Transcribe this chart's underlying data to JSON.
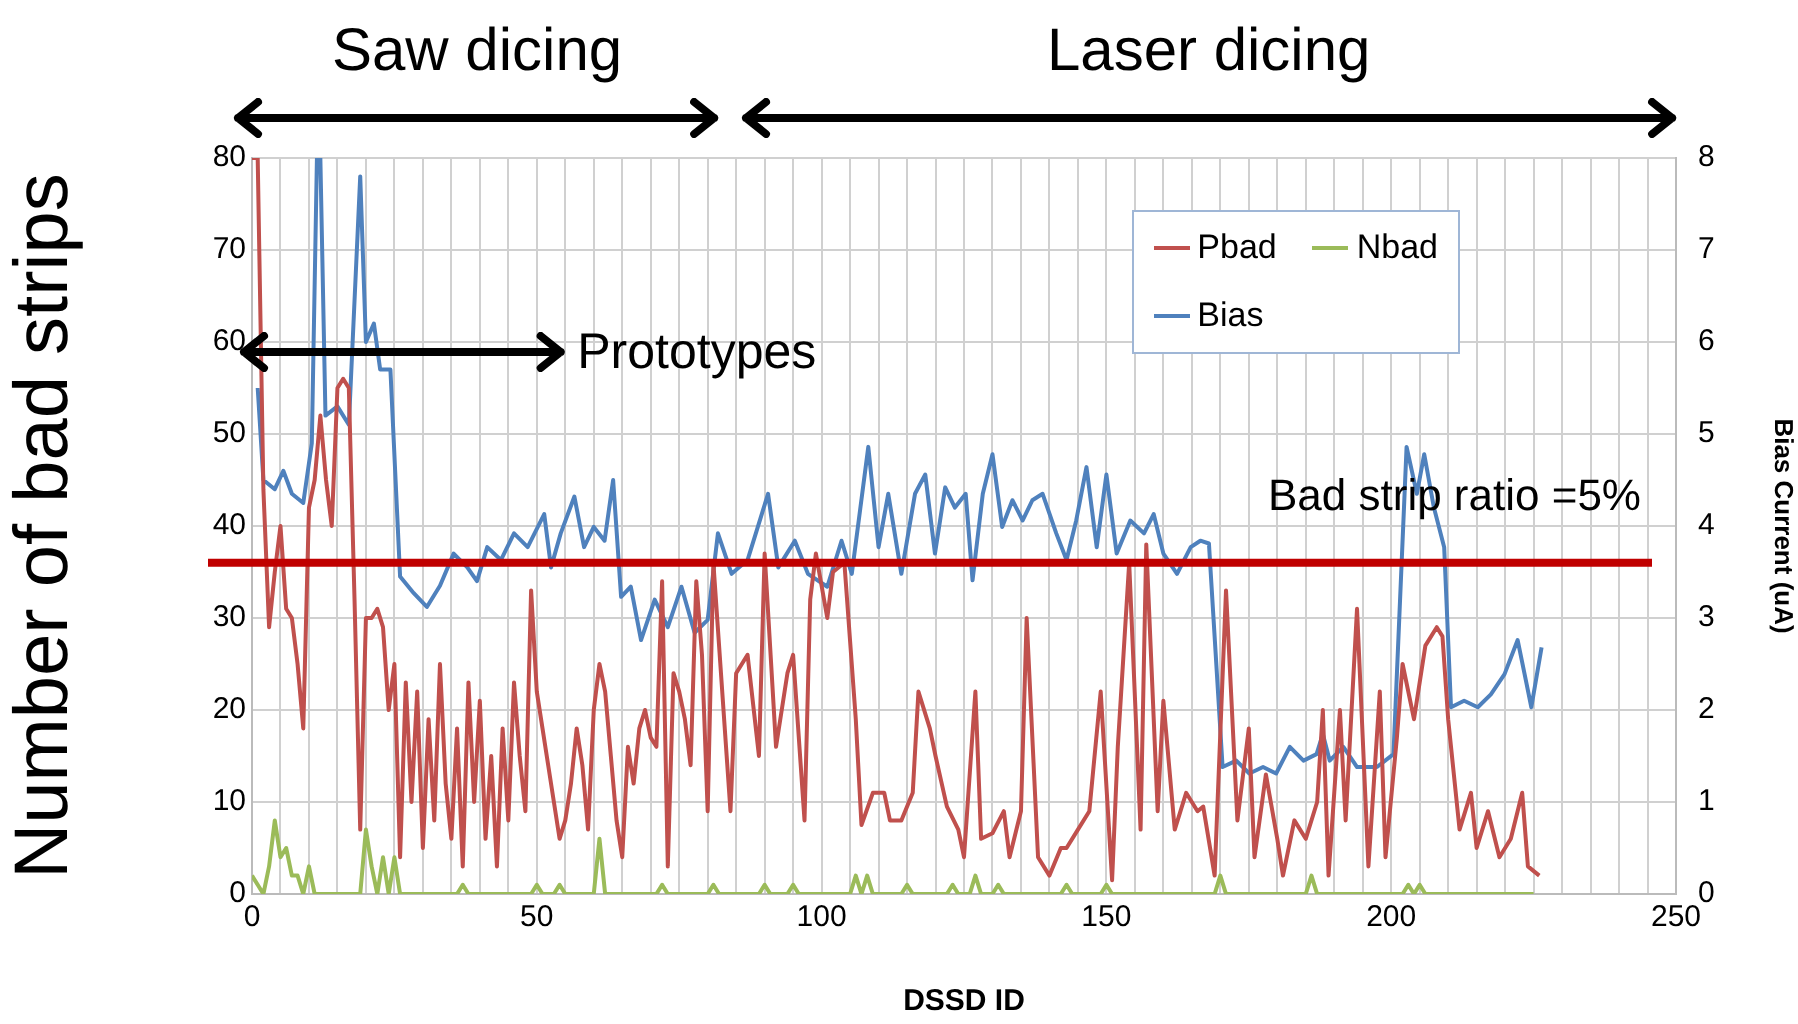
{
  "chart_data": {
    "type": "line",
    "xlabel": "DSSD ID",
    "ylabel": "Number of bad strips",
    "y2label": "Bias Current (uA)",
    "xlim": [
      0,
      250
    ],
    "xticks": [
      0,
      {
        "value": 5,
        "label": null
      },
      {
        "value": 10,
        "label": null
      },
      {
        "value": 15,
        "label": null
      },
      {
        "value": 20,
        "label": null
      },
      {
        "value": 25,
        "label": null
      },
      {
        "value": 30,
        "label": null
      },
      {
        "value": 35,
        "label": null
      },
      {
        "value": 40,
        "label": null
      },
      {
        "value": 45,
        "label": null
      },
      50,
      {
        "value": 55,
        "label": null
      },
      {
        "value": 60,
        "label": null
      },
      {
        "value": 65,
        "label": null
      },
      {
        "value": 70,
        "label": null
      },
      {
        "value": 75,
        "label": null
      },
      {
        "value": 80,
        "label": null
      },
      {
        "value": 85,
        "label": null
      },
      {
        "value": 90,
        "label": null
      },
      {
        "value": 95,
        "label": null
      },
      100,
      {
        "value": 105,
        "label": null
      },
      {
        "value": 110,
        "label": null
      },
      {
        "value": 115,
        "label": null
      },
      {
        "value": 120,
        "label": null
      },
      {
        "value": 125,
        "label": null
      },
      {
        "value": 130,
        "label": null
      },
      {
        "value": 135,
        "label": null
      },
      {
        "value": 140,
        "label": null
      },
      {
        "value": 145,
        "label": null
      },
      150,
      {
        "value": 155,
        "label": null
      },
      {
        "value": 160,
        "label": null
      },
      {
        "value": 165,
        "label": null
      },
      {
        "value": 170,
        "label": null
      },
      {
        "value": 175,
        "label": null
      },
      {
        "value": 180,
        "label": null
      },
      {
        "value": 185,
        "label": null
      },
      {
        "value": 190,
        "label": null
      },
      {
        "value": 195,
        "label": null
      },
      200,
      {
        "value": 205,
        "label": null
      },
      {
        "value": 210,
        "label": null
      },
      {
        "value": 215,
        "label": null
      },
      {
        "value": 220,
        "label": null
      },
      {
        "value": 225,
        "label": null
      },
      {
        "value": 230,
        "label": null
      },
      {
        "value": 235,
        "label": null
      },
      {
        "value": 240,
        "label": null
      },
      {
        "value": 245,
        "label": null
      },
      250
    ],
    "ylim": [
      0,
      80
    ],
    "yticks": [
      0,
      10,
      20,
      30,
      40,
      50,
      60,
      70,
      80
    ],
    "y2lim": [
      0,
      8
    ],
    "y2ticks": [
      0,
      1,
      2,
      3,
      4,
      5,
      6,
      7,
      8
    ],
    "grid": true,
    "legend": "top right",
    "marker": "none",
    "line_style": "solid",
    "series": [
      {
        "name": "Pbad",
        "color": "#c0504d",
        "x": [
          0,
          1,
          2,
          3,
          4,
          5,
          6,
          7,
          8,
          9,
          10,
          11,
          12,
          13,
          14,
          15,
          16,
          17,
          18,
          19,
          20,
          21,
          22,
          23,
          24,
          25,
          26,
          27,
          28,
          29,
          30,
          31,
          32,
          33,
          34,
          35,
          36,
          37,
          38,
          39,
          40,
          41,
          42,
          43,
          44,
          45,
          46,
          47,
          48,
          49,
          50,
          51,
          52,
          53,
          54,
          55,
          56,
          57,
          58,
          59,
          60,
          61,
          62,
          63,
          64,
          65,
          66,
          67,
          68,
          69,
          70,
          71,
          72,
          73,
          74,
          75,
          76,
          77,
          78,
          79,
          80,
          81,
          84,
          85,
          87,
          89,
          90,
          92,
          94,
          95,
          97,
          98,
          99,
          101,
          102,
          104,
          106,
          107,
          109,
          111,
          112,
          114,
          116,
          117,
          119,
          120,
          122,
          124,
          125,
          127,
          128,
          130,
          132,
          133,
          135,
          136,
          138,
          140,
          142,
          143,
          145,
          147,
          149,
          151,
          152,
          154,
          156,
          157,
          159,
          160,
          162,
          164,
          166,
          167,
          169,
          171,
          173,
          175,
          176,
          178,
          180,
          181,
          183,
          185,
          187,
          188,
          189,
          191,
          192,
          194,
          196,
          198,
          199,
          201,
          202,
          204,
          206,
          208,
          209,
          210,
          212,
          214,
          215,
          217,
          219,
          221,
          223,
          224,
          226
        ],
        "values": [
          80,
          80,
          44,
          29,
          35,
          40,
          31,
          30,
          25,
          18,
          42,
          45,
          52,
          45,
          40,
          55,
          56,
          55,
          32,
          7,
          30,
          30,
          31,
          29,
          20,
          25,
          4,
          23,
          10,
          22,
          5,
          19,
          8,
          25,
          12,
          6,
          18,
          3,
          23,
          10,
          21,
          6,
          15,
          3,
          18,
          8,
          23,
          15,
          9,
          33,
          22,
          18,
          14,
          10,
          6,
          8,
          12,
          18,
          14,
          7,
          20,
          25,
          22,
          15,
          8,
          4,
          16,
          12,
          18,
          20,
          17,
          16,
          34,
          3,
          24,
          22,
          19,
          14,
          34,
          26,
          9,
          36,
          9,
          24,
          26,
          15,
          37,
          16,
          24,
          26,
          8,
          32,
          37,
          30,
          35,
          36,
          19,
          7.5,
          11,
          11,
          8,
          8,
          11,
          22,
          18,
          15,
          9.5,
          7,
          4,
          22,
          6,
          6.6,
          9,
          4,
          9,
          30,
          4,
          2,
          5,
          5,
          7,
          9,
          22,
          1.5,
          16,
          36,
          7,
          38,
          9,
          21,
          7,
          11,
          9,
          9.5,
          2,
          33,
          8,
          18,
          4,
          13,
          6,
          2,
          8,
          6,
          10,
          20,
          2,
          20,
          8,
          31,
          3,
          22,
          4,
          17,
          25,
          19,
          27,
          29,
          28,
          19,
          7,
          11,
          5,
          9,
          4,
          6,
          11,
          3,
          2
        ]
      },
      {
        "name": "Nbad",
        "color": "#9bbb59",
        "x": [
          0,
          1,
          2,
          3,
          4,
          5,
          6,
          7,
          8,
          9,
          10,
          11,
          12,
          13,
          19,
          20,
          21,
          22,
          23,
          24,
          25,
          26,
          36,
          37,
          38,
          49,
          50,
          51,
          53,
          54,
          55,
          60,
          61,
          62,
          63,
          71,
          72,
          73,
          80,
          81,
          82,
          89,
          90,
          91,
          94,
          95,
          96,
          105,
          106,
          107,
          108,
          109,
          114,
          115,
          116,
          122,
          123,
          124,
          126,
          127,
          128,
          130,
          131,
          132,
          142,
          143,
          144,
          149,
          150,
          151,
          169,
          170,
          171,
          185,
          186,
          187,
          202,
          203,
          204,
          205,
          206,
          225
        ],
        "values": [
          2,
          1,
          0,
          3,
          8,
          4,
          5,
          2,
          2,
          0,
          3,
          0,
          0,
          0,
          0,
          7,
          3,
          0,
          4,
          0,
          4,
          0,
          0,
          1,
          0,
          0,
          1,
          0,
          0,
          1,
          0,
          0,
          6,
          0,
          0,
          0,
          1,
          0,
          0,
          1,
          0,
          0,
          1,
          0,
          0,
          1,
          0,
          0,
          2,
          0,
          2,
          0,
          0,
          1,
          0,
          0,
          1,
          0,
          0,
          2,
          0,
          0,
          1,
          0,
          0,
          1,
          0,
          0,
          1,
          0,
          0,
          2,
          0,
          0,
          2,
          0,
          0,
          1,
          0,
          1,
          0,
          0
        ]
      },
      {
        "name": "Bias",
        "color": "#4f81bd",
        "axis": "y2",
        "x": [
          1,
          2,
          4,
          5.5,
          7,
          9,
          10.5,
          11.4,
          12,
          12.9,
          15,
          17,
          19,
          20,
          21.4,
          22.5,
          24.3,
          26,
          28.4,
          30.7,
          33,
          35.4,
          37.8,
          39.5,
          41.3,
          43.7,
          46,
          48.4,
          51.3,
          52.5,
          54.2,
          56.6,
          58.3,
          60,
          61.9,
          63.4,
          64.8,
          66.5,
          68.3,
          70.7,
          73,
          75.4,
          77.7,
          80,
          81.8,
          84.2,
          87,
          90.6,
          92.4,
          95.3,
          97.6,
          101,
          103.5,
          105.3,
          108.2,
          110,
          111.7,
          114,
          116.4,
          118.2,
          119.9,
          121.7,
          123.4,
          125.3,
          126.5,
          128.3,
          130,
          131.7,
          133.5,
          135.3,
          137,
          138.8,
          141.2,
          143,
          144.7,
          146.5,
          148.3,
          150,
          151.8,
          154.2,
          156.6,
          158.3,
          160,
          162.4,
          164.8,
          166.5,
          168,
          170.4,
          172.8,
          175.1,
          177.5,
          179.8,
          182.2,
          184.6,
          186.9,
          188,
          189.2,
          191.6,
          194,
          197.5,
          200.4,
          202.7,
          204.5,
          205.8,
          207.5,
          209.3,
          210.5,
          212.8,
          215.2,
          217.5,
          219.9,
          222.2,
          224.6,
          226.4
        ],
        "values": [
          5.5,
          4.5,
          4.4,
          4.6,
          4.35,
          4.25,
          4.9,
          8,
          8,
          5.2,
          5.3,
          5.1,
          7.8,
          6,
          6.2,
          5.7,
          5.7,
          3.45,
          3.27,
          3.12,
          3.35,
          3.7,
          3.55,
          3.4,
          3.77,
          3.63,
          3.92,
          3.77,
          4.13,
          3.55,
          3.92,
          4.32,
          3.77,
          3.99,
          3.84,
          4.5,
          3.23,
          3.34,
          2.76,
          3.2,
          2.9,
          3.34,
          2.84,
          2.98,
          3.92,
          3.48,
          3.63,
          4.35,
          3.55,
          3.84,
          3.48,
          3.34,
          3.84,
          3.48,
          4.86,
          3.77,
          4.35,
          3.48,
          4.35,
          4.56,
          3.7,
          4.42,
          4.2,
          4.35,
          3.41,
          4.35,
          4.78,
          3.99,
          4.28,
          4.06,
          4.28,
          4.35,
          3.92,
          3.63,
          4.06,
          4.64,
          3.77,
          4.56,
          3.7,
          4.06,
          3.92,
          4.13,
          3.7,
          3.48,
          3.77,
          3.84,
          3.81,
          1.38,
          1.45,
          1.31,
          1.38,
          1.31,
          1.6,
          1.45,
          1.52,
          1.74,
          1.45,
          1.6,
          1.38,
          1.38,
          1.52,
          4.86,
          4.35,
          4.78,
          4.2,
          3.77,
          2.03,
          2.1,
          2.03,
          2.17,
          2.39,
          2.76,
          2.03,
          2.68
        ]
      }
    ],
    "ref_lines": [
      {
        "axis": "y",
        "value": 36,
        "color": "#c00000"
      }
    ],
    "annotations": [
      "Saw dicing",
      "Laser dicing",
      "Prototypes",
      "Bad strip ratio =5%"
    ]
  }
}
